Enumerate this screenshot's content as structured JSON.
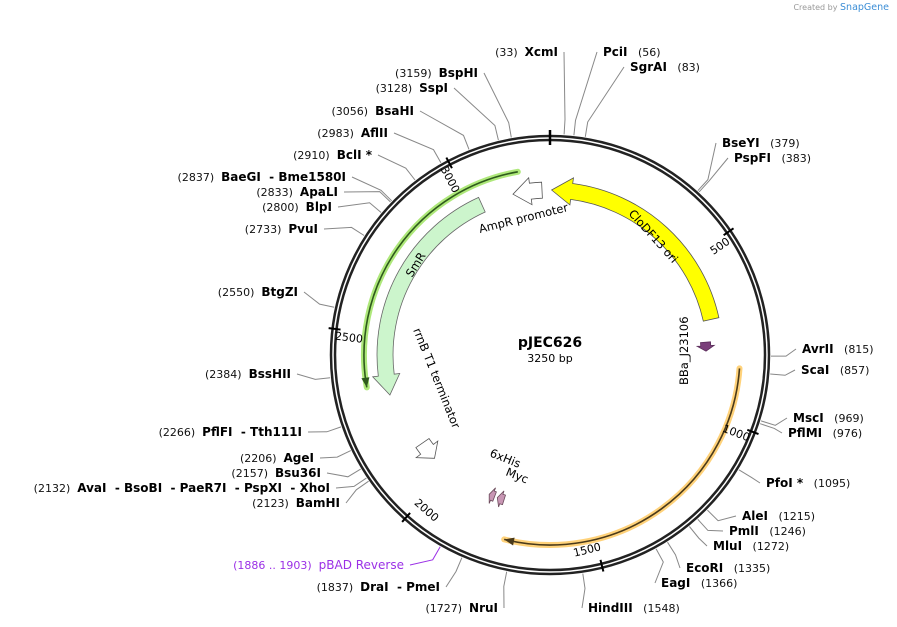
{
  "logo": {
    "created_by": "Created by",
    "brand": "SnapGene"
  },
  "plasmid": {
    "name": "pJEC626",
    "length_label": "3250 bp",
    "length_bp": 3250
  },
  "ticks": [
    {
      "bp": 500,
      "label": "500"
    },
    {
      "bp": 1000,
      "label": "1000"
    },
    {
      "bp": 1500,
      "label": "1500"
    },
    {
      "bp": 2000,
      "label": "2000"
    },
    {
      "bp": 2500,
      "label": "2500"
    },
    {
      "bp": 3000,
      "label": "3000"
    }
  ],
  "sites": [
    {
      "name": "XcmI",
      "pos": "(33)",
      "bp": 33
    },
    {
      "name": "PciI",
      "pos": "(56)",
      "bp": 56
    },
    {
      "name": "SgrAI",
      "pos": "(83)",
      "bp": 83
    },
    {
      "name": "BspHI",
      "pos": "(3159)",
      "bp": 3159
    },
    {
      "name": "SspI",
      "pos": "(3128)",
      "bp": 3128
    },
    {
      "name": "BsaHI",
      "pos": "(3056)",
      "bp": 3056
    },
    {
      "name": "AflII",
      "pos": "(2983)",
      "bp": 2983
    },
    {
      "name": "BclI *",
      "pos": "(2910)",
      "bp": 2910
    },
    {
      "name": "BaeGI  - Bme1580I",
      "pos": "(2837)",
      "bp": 2837
    },
    {
      "name": "ApaLI",
      "pos": "(2833)",
      "bp": 2833
    },
    {
      "name": "BlpI",
      "pos": "(2800)",
      "bp": 2800
    },
    {
      "name": "PvuI",
      "pos": "(2733)",
      "bp": 2733
    },
    {
      "name": "BtgZI",
      "pos": "(2550)",
      "bp": 2550
    },
    {
      "name": "BssHII",
      "pos": "(2384)",
      "bp": 2384
    },
    {
      "name": "PflFI  - Tth111I",
      "pos": "(2266)",
      "bp": 2266
    },
    {
      "name": "AgeI",
      "pos": "(2206)",
      "bp": 2206
    },
    {
      "name": "Bsu36I",
      "pos": "(2157)",
      "bp": 2157
    },
    {
      "name": "AvaI  - BsoBI  - PaeR7I  - PspXI  - XhoI",
      "pos": "(2132)",
      "bp": 2132
    },
    {
      "name": "BamHI",
      "pos": "(2123)",
      "bp": 2123
    },
    {
      "name": "pBAD Reverse",
      "pos": "(1886 .. 1903)",
      "bp": 1894,
      "color": "#9b30e6"
    },
    {
      "name": "DraI  - PmeI",
      "pos": "(1837)",
      "bp": 1837
    },
    {
      "name": "NruI",
      "pos": "(1727)",
      "bp": 1727
    },
    {
      "name": "HindIII",
      "pos": "(1548)",
      "bp": 1548
    },
    {
      "name": "EagI",
      "pos": "(1366)",
      "bp": 1366
    },
    {
      "name": "EcoRI",
      "pos": "(1335)",
      "bp": 1335
    },
    {
      "name": "MluI",
      "pos": "(1272)",
      "bp": 1272
    },
    {
      "name": "PmlI",
      "pos": "(1246)",
      "bp": 1246
    },
    {
      "name": "AleI",
      "pos": "(1215)",
      "bp": 1215
    },
    {
      "name": "PfoI *",
      "pos": "(1095)",
      "bp": 1095
    },
    {
      "name": "PflMI",
      "pos": "(976)",
      "bp": 976
    },
    {
      "name": "MscI",
      "pos": "(969)",
      "bp": 969
    },
    {
      "name": "ScaI",
      "pos": "(857)",
      "bp": 857
    },
    {
      "name": "AvrII",
      "pos": "(815)",
      "bp": 815
    },
    {
      "name": "PspFI",
      "pos": "(383)",
      "bp": 383
    },
    {
      "name": "BseYI",
      "pos": "(379)",
      "bp": 379
    }
  ],
  "features": [
    {
      "label": "CloDF13 ori",
      "start": 5,
      "end": 700,
      "dir": "ccw",
      "fill": "#ffff00",
      "stroke": "#555555"
    },
    {
      "label": "AmpR promoter",
      "start": 3133,
      "end": 3225,
      "dir": "ccw",
      "fill": "#ffffff",
      "stroke": "#555555"
    },
    {
      "label": "SmR",
      "start": 2311,
      "end": 3030,
      "dir": "ccw",
      "fill": "#ccf5cc",
      "stroke": "#666666"
    },
    {
      "label": "rrnB T1 terminator",
      "start": 2060,
      "end": 2125,
      "dir": "ccw",
      "fill": "#ffffff",
      "stroke": "#555555"
    },
    {
      "label": "BBa_J23106",
      "start": 770,
      "end": 800,
      "dir": "cw",
      "fill": "#7a3f7a",
      "stroke": "#5a2d5a"
    },
    {
      "label": "6xHis",
      "start": 1818,
      "end": 1838,
      "dir": "cw",
      "fill": "#c896b4",
      "stroke": "#6a4a5a"
    },
    {
      "label": "Myc",
      "start": 1784,
      "end": 1808,
      "dir": "cw",
      "fill": "#c896b4",
      "stroke": "#6a4a5a"
    }
  ],
  "thin_features": [
    {
      "start": 2347,
      "end": 3160,
      "dir": "ccw",
      "glow": "#aee87a",
      "line": "#2e5a1c"
    },
    {
      "start": 849,
      "end": 1751,
      "dir": "cw",
      "glow": "#ffd27a",
      "line": "#4a3a1a"
    }
  ]
}
